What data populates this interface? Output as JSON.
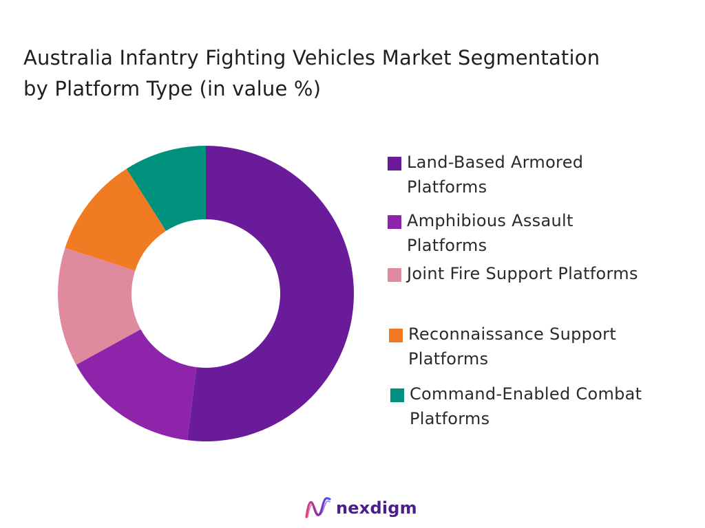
{
  "title_line1": "Australia Infantry Fighting Vehicles Market Segmentation",
  "title_line2": "by Platform Type (in value %)",
  "chart_data": {
    "type": "pie",
    "donut": true,
    "title": "Australia Infantry Fighting Vehicles Market Segmentation by Platform Type (in value %)",
    "legend_position": "right",
    "categories": [
      "Land-Based Armored Platforms",
      "Amphibious Assault Platforms",
      "Joint Fire Support Platforms",
      "Reconnaissance Support Platforms",
      "Command-Enabled Combat Platforms"
    ],
    "values": [
      52,
      15,
      13,
      11,
      9
    ],
    "colors": [
      "#6a1b9a",
      "#8e24aa",
      "#e08aa0",
      "#f07b22",
      "#00917c"
    ]
  },
  "legend": [
    {
      "line1": "Land-Based Armored",
      "line2": "Platforms",
      "color": "#6a1b9a"
    },
    {
      "line1": "Amphibious Assault",
      "line2": "Platforms",
      "color": "#8e24aa"
    },
    {
      "line1": "Joint Fire Support Platforms",
      "line2": "",
      "color": "#e08aa0"
    },
    {
      "line1": "Reconnaissance Support",
      "line2": "Platforms",
      "color": "#f07b22"
    },
    {
      "line1": "Command-Enabled Combat",
      "line2": "Platforms",
      "color": "#00917c"
    }
  ],
  "brand": {
    "name": "nexdigm",
    "color": "#4b1f8a",
    "icon": "nexdigm-logo-icon"
  }
}
